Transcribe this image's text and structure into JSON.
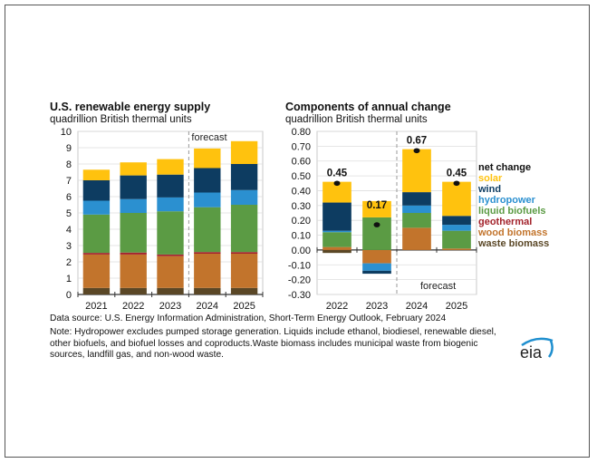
{
  "colors": {
    "waste biomass": "#5a4726",
    "wood biomass": "#c2742c",
    "geothermal": "#a3232c",
    "liquid biofuels": "#5b9b44",
    "hydropower": "#2b90d0",
    "wind": "#0d3c61",
    "solar": "#ffc20e",
    "net change": "#111111"
  },
  "chart_data": [
    {
      "type": "bar",
      "stacked": true,
      "title": "U.S. renewable energy supply",
      "subtitle": "quadrillion British thermal units",
      "categories": [
        "2021",
        "2022",
        "2023",
        "2024",
        "2025"
      ],
      "ylim": [
        0,
        10
      ],
      "yticks": [
        "0",
        "1",
        "2",
        "3",
        "4",
        "5",
        "6",
        "7",
        "8",
        "9",
        "10"
      ],
      "grid": true,
      "forecast_label": "forecast",
      "forecast_from": "2024",
      "series": [
        {
          "name": "waste biomass",
          "values": [
            0.4,
            0.4,
            0.4,
            0.4,
            0.4
          ]
        },
        {
          "name": "wood biomass",
          "values": [
            2.05,
            2.05,
            1.95,
            2.1,
            2.1
          ]
        },
        {
          "name": "geothermal",
          "values": [
            0.1,
            0.12,
            0.1,
            0.1,
            0.1
          ]
        },
        {
          "name": "liquid biofuels",
          "values": [
            2.35,
            2.43,
            2.65,
            2.75,
            2.9
          ]
        },
        {
          "name": "hydropower",
          "values": [
            0.85,
            0.85,
            0.85,
            0.9,
            0.9
          ]
        },
        {
          "name": "wind",
          "values": [
            1.25,
            1.45,
            1.4,
            1.5,
            1.6
          ]
        },
        {
          "name": "solar",
          "values": [
            0.65,
            0.8,
            0.95,
            1.2,
            1.4
          ]
        }
      ]
    },
    {
      "type": "bar",
      "stacked": true,
      "title": "Components of annual change",
      "subtitle": "quadrillion British thermal units",
      "categories": [
        "2022",
        "2023",
        "2024",
        "2025"
      ],
      "ylim": [
        -0.3,
        0.8
      ],
      "yticks": [
        "-0.30",
        "-0.20",
        "-0.10",
        "0.00",
        "0.10",
        "0.20",
        "0.30",
        "0.40",
        "0.50",
        "0.60",
        "0.70",
        "0.80"
      ],
      "grid": true,
      "forecast_label": "forecast",
      "forecast_from": "2024",
      "series": [
        {
          "name": "waste biomass",
          "values": [
            -0.02,
            0,
            0,
            0
          ]
        },
        {
          "name": "wood biomass",
          "values": [
            0.02,
            -0.09,
            0.15,
            0.01
          ]
        },
        {
          "name": "geothermal",
          "values": [
            0,
            0,
            0,
            0
          ]
        },
        {
          "name": "liquid biofuels",
          "values": [
            0.1,
            0.22,
            0.1,
            0.12
          ]
        },
        {
          "name": "hydropower",
          "values": [
            0.01,
            -0.05,
            0.05,
            0.04
          ]
        },
        {
          "name": "wind",
          "values": [
            0.19,
            -0.02,
            0.09,
            0.06
          ]
        },
        {
          "name": "solar",
          "values": [
            0.14,
            0.11,
            0.29,
            0.23
          ]
        }
      ],
      "net_change": {
        "name": "net change",
        "values": [
          0.45,
          0.17,
          0.67,
          0.45
        ],
        "labels": [
          "0.45",
          "0.17",
          "0.67",
          "0.45"
        ]
      },
      "legend": [
        "net change",
        "solar",
        "wind",
        "hydropower",
        "liquid biofuels",
        "geothermal",
        "wood biomass",
        "waste biomass"
      ],
      "legend_placement": "right"
    }
  ],
  "footer": {
    "source": "Data source: U.S. Energy Information Administration, Short-Term Energy Outlook, February 2024",
    "note": "Note: Hydropower excludes pumped storage generation. Liquids include ethanol, biodiesel, renewable diesel, other biofuels, and biofuel losses and coproducts.Waste biomass includes municipal waste from biogenic sources, landfill gas, and non-wood waste.",
    "logo_text": "eia"
  }
}
